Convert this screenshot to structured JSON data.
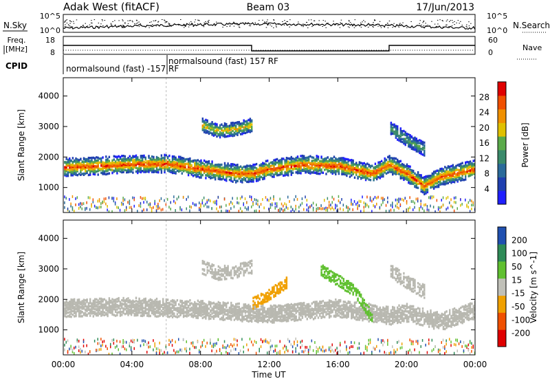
{
  "header": {
    "site": "Adak West (fitACF)",
    "beam": "Beam 03",
    "date": "17/Jun/2013"
  },
  "top_panel": {
    "left_label": "N.Sky",
    "left_ticks": [
      "10^5",
      "10^0"
    ],
    "right_ticks": [
      "10^5",
      "10^0"
    ],
    "right_label": "N.Search"
  },
  "freq_panel": {
    "label_line1": "Freq.",
    "label_line2": "[MHz]",
    "left_ticks": [
      "18",
      "8"
    ],
    "right_ticks": [
      "60",
      "0"
    ],
    "right_label": "Nave",
    "cpid_label": "CPID",
    "cpid_segments": [
      "normalsound (fast) -157 RF",
      "normalsound (fast) 157 RF"
    ]
  },
  "power_panel": {
    "ylabel": "Slant Range [km]",
    "yticks": [
      "1000",
      "2000",
      "3000",
      "4000"
    ],
    "colorbar_label": "Power [dB]",
    "colorbar_ticks": [
      "4",
      "8",
      "12",
      "16",
      "20",
      "24",
      "28"
    ]
  },
  "velocity_panel": {
    "ylabel": "Slant Range [km]",
    "yticks": [
      "1000",
      "2000",
      "3000",
      "4000"
    ],
    "colorbar_label": "Velocity [m s^-1]",
    "colorbar_ticks": [
      "200",
      "100",
      "50",
      "15",
      "-15",
      "-50",
      "-100",
      "-200"
    ]
  },
  "xaxis": {
    "label": "Time UT",
    "ticks": [
      "00:00",
      "04:00",
      "08:00",
      "12:00",
      "16:00",
      "20:00",
      "00:00"
    ]
  },
  "colors": {
    "power_scale": [
      "#1f1fff",
      "#1f3fb0",
      "#2a6a9a",
      "#3a8a6a",
      "#5aaa4a",
      "#e0c000",
      "#f09000",
      "#f05000",
      "#e00000"
    ],
    "velocity_scale": [
      "#e00000",
      "#f05000",
      "#f0a000",
      "#c0c0b8",
      "#60c030",
      "#2e8b57",
      "#2050b0"
    ],
    "ground_scatter": "#b8b8b0"
  },
  "chart_data": [
    {
      "type": "heatmap",
      "title": "Power",
      "x": [
        0,
        4,
        8,
        12,
        16,
        20,
        24
      ],
      "xlabel": "Time UT",
      "ylabel": "Slant Range [km]",
      "xlim": [
        0,
        24
      ],
      "ylim": [
        180,
        4600
      ],
      "clim": [
        0,
        30
      ],
      "features": [
        {
          "name": "main band",
          "times": [
            0,
            2,
            4,
            6,
            8,
            10,
            11,
            12,
            14,
            16,
            18,
            19,
            20,
            21,
            22,
            24
          ],
          "range_km": [
            1700,
            1750,
            1800,
            1820,
            1650,
            1500,
            1500,
            1650,
            1800,
            1750,
            1500,
            1800,
            1500,
            1100,
            1400,
            1650
          ],
          "peak_power_db": 26
        },
        {
          "name": "upper band",
          "times": [
            8,
            9,
            10,
            11
          ],
          "range_km": [
            3100,
            2900,
            2950,
            3100
          ],
          "peak_power_db": 20
        },
        {
          "name": "late upper band",
          "times": [
            19,
            20,
            21
          ],
          "range_km": [
            3000,
            2600,
            2300
          ],
          "peak_power_db": 14
        }
      ]
    },
    {
      "type": "heatmap",
      "title": "Velocity",
      "x": [
        0,
        4,
        8,
        12,
        16,
        20,
        24
      ],
      "xlabel": "Time UT",
      "ylabel": "Slant Range [km]",
      "xlim": [
        0,
        24
      ],
      "ylim": [
        180,
        4600
      ],
      "clim": [
        -200,
        200
      ],
      "features": [
        {
          "name": "ground scatter band",
          "times": [
            0,
            4,
            8,
            12,
            16,
            19,
            20,
            22,
            24
          ],
          "range_km": [
            1750,
            1800,
            1700,
            1550,
            1750,
            1500,
            1600,
            1300,
            1700
          ],
          "velocity": 0
        },
        {
          "name": "negative patch",
          "times": [
            11,
            12,
            13
          ],
          "range_km": [
            1900,
            2200,
            2600
          ],
          "velocity": -50
        },
        {
          "name": "positive patch",
          "times": [
            15,
            17,
            18
          ],
          "range_km": [
            3000,
            2300,
            1400
          ],
          "velocity": 50
        }
      ]
    }
  ]
}
